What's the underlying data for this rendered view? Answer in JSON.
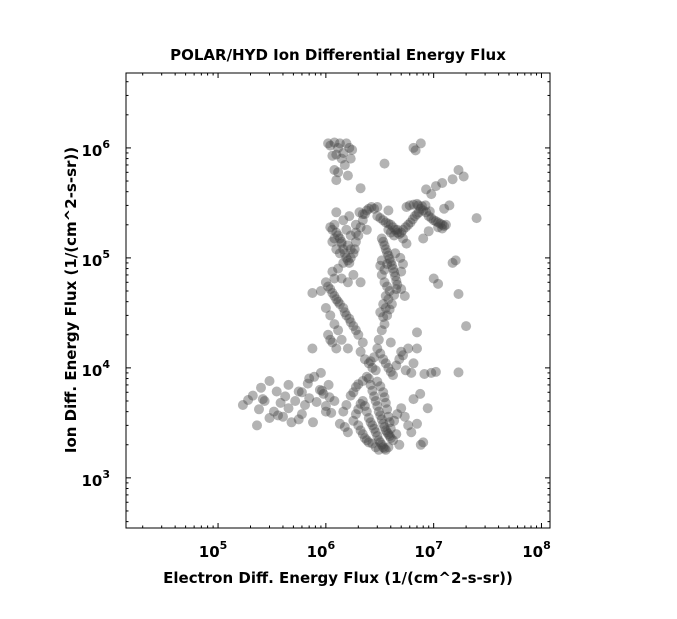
{
  "chart_data": {
    "type": "scatter",
    "title": "POLAR/HYD  Ion Differential Energy Flux",
    "xlabel": "Electron Diff. Energy Flux (1/(cm^2-s-sr))",
    "ylabel": "Ion Diff. Energy Flux (1/(cm^2-s-sr))",
    "x_scale": "log",
    "y_scale": "log",
    "xlim": [
      14000,
      120000000
    ],
    "ylim": [
      350,
      4800000
    ],
    "x_ticks": [
      {
        "base": "10",
        "exp": "5",
        "value": 100000
      },
      {
        "base": "10",
        "exp": "6",
        "value": 1000000
      },
      {
        "base": "10",
        "exp": "7",
        "value": 10000000
      },
      {
        "base": "10",
        "exp": "8",
        "value": 100000000
      }
    ],
    "y_ticks": [
      {
        "base": "10",
        "exp": "3",
        "value": 1000
      },
      {
        "base": "10",
        "exp": "4",
        "value": 10000
      },
      {
        "base": "10",
        "exp": "5",
        "value": 100000
      },
      {
        "base": "10",
        "exp": "6",
        "value": 1000000
      }
    ],
    "grid": false,
    "marker_color": "#404040",
    "marker_opacity": 0.4,
    "points": [
      [
        170000,
        4600
      ],
      [
        190000,
        5100
      ],
      [
        210000,
        5600
      ],
      [
        230000,
        3000
      ],
      [
        240000,
        4200
      ],
      [
        250000,
        6600
      ],
      [
        270000,
        5000
      ],
      [
        300000,
        3500
      ],
      [
        330000,
        4000
      ],
      [
        350000,
        6100
      ],
      [
        380000,
        4800
      ],
      [
        400000,
        3600
      ],
      [
        420000,
        5500
      ],
      [
        450000,
        4300
      ],
      [
        480000,
        3200
      ],
      [
        520000,
        5000
      ],
      [
        560000,
        6100
      ],
      [
        600000,
        3800
      ],
      [
        640000,
        4600
      ],
      [
        700000,
        5300
      ],
      [
        760000,
        3200
      ],
      [
        820000,
        4900
      ],
      [
        880000,
        6300
      ],
      [
        950000,
        5800
      ],
      [
        1000000,
        4500
      ],
      [
        1060000,
        7000
      ],
      [
        1120000,
        3900
      ],
      [
        1200000,
        5000
      ],
      [
        300000,
        7600
      ],
      [
        450000,
        7000
      ],
      [
        680000,
        7200
      ],
      [
        780000,
        8300
      ],
      [
        920000,
        6200
      ],
      [
        1000000,
        4000
      ],
      [
        1080000,
        5400
      ],
      [
        560000,
        3400
      ],
      [
        360000,
        3700
      ],
      [
        260000,
        5200
      ],
      [
        1050000,
        1100000
      ],
      [
        1100000,
        1050000
      ],
      [
        1200000,
        1120000
      ],
      [
        1300000,
        1000000
      ],
      [
        1350000,
        1100000
      ],
      [
        1450000,
        900000
      ],
      [
        1550000,
        1100000
      ],
      [
        1650000,
        1000000
      ],
      [
        1750000,
        960000
      ],
      [
        1150000,
        850000
      ],
      [
        1250000,
        870000
      ],
      [
        1400000,
        800000
      ],
      [
        1700000,
        800000
      ],
      [
        1500000,
        700000
      ],
      [
        1200000,
        630000
      ],
      [
        1300000,
        600000
      ],
      [
        1600000,
        560000
      ],
      [
        1250000,
        510000
      ],
      [
        2100000,
        430000
      ],
      [
        3500000,
        720000
      ],
      [
        6500000,
        1000000
      ],
      [
        6800000,
        950000
      ],
      [
        7600000,
        1100000
      ],
      [
        8500000,
        420000
      ],
      [
        9500000,
        380000
      ],
      [
        10500000,
        450000
      ],
      [
        12000000,
        480000
      ],
      [
        15000000,
        520000
      ],
      [
        17000000,
        630000
      ],
      [
        19000000,
        550000
      ],
      [
        25000000,
        230000
      ],
      [
        14000000,
        300000
      ],
      [
        12500000,
        280000
      ],
      [
        7000000,
        310000
      ],
      [
        1100000,
        190000
      ],
      [
        1150000,
        180000
      ],
      [
        1200000,
        200000
      ],
      [
        1250000,
        170000
      ],
      [
        1300000,
        160000
      ],
      [
        1350000,
        150000
      ],
      [
        1400000,
        135000
      ],
      [
        1450000,
        120000
      ],
      [
        1500000,
        110000
      ],
      [
        1550000,
        100000
      ],
      [
        1600000,
        95000
      ],
      [
        1650000,
        90000
      ],
      [
        1700000,
        100000
      ],
      [
        1800000,
        110000
      ],
      [
        1850000,
        120000
      ],
      [
        1900000,
        140000
      ],
      [
        2000000,
        160000
      ],
      [
        2100000,
        190000
      ],
      [
        2200000,
        220000
      ],
      [
        2300000,
        250000
      ],
      [
        2400000,
        270000
      ],
      [
        2500000,
        280000
      ],
      [
        2650000,
        290000
      ],
      [
        2800000,
        280000
      ],
      [
        3000000,
        290000
      ],
      [
        1150000,
        75000
      ],
      [
        1200000,
        65000
      ],
      [
        1300000,
        80000
      ],
      [
        1250000,
        120000
      ],
      [
        1150000,
        140000
      ],
      [
        1200000,
        150000
      ],
      [
        1400000,
        140000
      ],
      [
        1350000,
        110000
      ],
      [
        1450000,
        90000
      ],
      [
        1700000,
        160000
      ],
      [
        1900000,
        200000
      ],
      [
        1700000,
        120000
      ],
      [
        1600000,
        130000
      ],
      [
        2200000,
        250000
      ],
      [
        2050000,
        260000
      ],
      [
        3000000,
        240000
      ],
      [
        3200000,
        230000
      ],
      [
        3400000,
        220000
      ],
      [
        3600000,
        210000
      ],
      [
        3800000,
        205000
      ],
      [
        4000000,
        200000
      ],
      [
        4200000,
        190000
      ],
      [
        4400000,
        180000
      ],
      [
        4600000,
        170000
      ],
      [
        4800000,
        165000
      ],
      [
        5000000,
        170000
      ],
      [
        5200000,
        180000
      ],
      [
        5500000,
        190000
      ],
      [
        5800000,
        200000
      ],
      [
        6100000,
        210000
      ],
      [
        6400000,
        225000
      ],
      [
        6700000,
        240000
      ],
      [
        7000000,
        250000
      ],
      [
        7300000,
        260000
      ],
      [
        7600000,
        280000
      ],
      [
        8000000,
        270000
      ],
      [
        8500000,
        260000
      ],
      [
        9000000,
        240000
      ],
      [
        9500000,
        230000
      ],
      [
        10000000,
        220000
      ],
      [
        10500000,
        215000
      ],
      [
        11000000,
        210000
      ],
      [
        11500000,
        205000
      ],
      [
        12000000,
        200000
      ],
      [
        12500000,
        195000
      ],
      [
        13000000,
        200000
      ],
      [
        5600000,
        290000
      ],
      [
        6000000,
        300000
      ],
      [
        6500000,
        305000
      ],
      [
        7200000,
        300000
      ],
      [
        7800000,
        295000
      ],
      [
        8400000,
        300000
      ],
      [
        9200000,
        265000
      ],
      [
        11000000,
        190000
      ],
      [
        12000000,
        185000
      ],
      [
        3300000,
        150000
      ],
      [
        3400000,
        140000
      ],
      [
        3500000,
        130000
      ],
      [
        3600000,
        120000
      ],
      [
        3700000,
        112000
      ],
      [
        3800000,
        105000
      ],
      [
        3900000,
        98000
      ],
      [
        4000000,
        92000
      ],
      [
        4100000,
        86000
      ],
      [
        4200000,
        80000
      ],
      [
        4300000,
        74000
      ],
      [
        4400000,
        68000
      ],
      [
        4500000,
        62000
      ],
      [
        4600000,
        57000
      ],
      [
        3500000,
        60000
      ],
      [
        3700000,
        55000
      ],
      [
        3900000,
        50000
      ],
      [
        3600000,
        45000
      ],
      [
        3800000,
        42000
      ],
      [
        3400000,
        38000
      ],
      [
        3600000,
        35000
      ],
      [
        3200000,
        32000
      ],
      [
        3400000,
        29000
      ],
      [
        3700000,
        30000
      ],
      [
        3900000,
        34000
      ],
      [
        4100000,
        38000
      ],
      [
        4300000,
        46000
      ],
      [
        4500000,
        52000
      ],
      [
        3300000,
        70000
      ],
      [
        3500000,
        78000
      ],
      [
        3200000,
        85000
      ],
      [
        3300000,
        95000
      ],
      [
        3700000,
        88000
      ],
      [
        4600000,
        180000
      ],
      [
        4000000,
        170000
      ],
      [
        3800000,
        180000
      ],
      [
        4400000,
        110000
      ],
      [
        4900000,
        100000
      ],
      [
        5200000,
        88000
      ],
      [
        5000000,
        75000
      ],
      [
        1000000,
        60000
      ],
      [
        1050000,
        55000
      ],
      [
        1100000,
        52000
      ],
      [
        1150000,
        48000
      ],
      [
        1200000,
        45000
      ],
      [
        1250000,
        42000
      ],
      [
        1300000,
        40000
      ],
      [
        1350000,
        38000
      ],
      [
        1450000,
        35000
      ],
      [
        1500000,
        32000
      ],
      [
        1550000,
        30000
      ],
      [
        1650000,
        28000
      ],
      [
        1700000,
        26000
      ],
      [
        1800000,
        24000
      ],
      [
        1900000,
        22000
      ],
      [
        2000000,
        20000
      ],
      [
        1000000,
        35000
      ],
      [
        1100000,
        30000
      ],
      [
        1200000,
        25000
      ],
      [
        1300000,
        22000
      ],
      [
        1050000,
        20000
      ],
      [
        1150000,
        17000
      ],
      [
        1250000,
        15000
      ],
      [
        1400000,
        18000
      ],
      [
        1600000,
        15000
      ],
      [
        2100000,
        14000
      ],
      [
        2300000,
        12000
      ],
      [
        2500000,
        11000
      ],
      [
        2700000,
        10000
      ],
      [
        2900000,
        9500
      ],
      [
        750000,
        48000
      ],
      [
        900000,
        50000
      ],
      [
        1600000,
        60000
      ],
      [
        1800000,
        70000
      ],
      [
        1400000,
        65000
      ],
      [
        1100000,
        18000
      ],
      [
        2200000,
        17000
      ],
      [
        5200000,
        13000
      ],
      [
        5800000,
        15000
      ],
      [
        7000000,
        21000
      ],
      [
        2500000,
        8000
      ],
      [
        2600000,
        7000
      ],
      [
        2700000,
        6200
      ],
      [
        2800000,
        5500
      ],
      [
        2900000,
        5000
      ],
      [
        3000000,
        4500
      ],
      [
        3100000,
        4000
      ],
      [
        3200000,
        3700
      ],
      [
        3300000,
        3400
      ],
      [
        3400000,
        3100
      ],
      [
        3500000,
        2900
      ],
      [
        3600000,
        2700
      ],
      [
        3700000,
        2600
      ],
      [
        3800000,
        2500
      ],
      [
        3900000,
        2400
      ],
      [
        4000000,
        2300
      ],
      [
        2200000,
        5000
      ],
      [
        2300000,
        4500
      ],
      [
        2400000,
        4000
      ],
      [
        2500000,
        3500
      ],
      [
        2600000,
        3200
      ],
      [
        2700000,
        3000
      ],
      [
        2800000,
        2800
      ],
      [
        2900000,
        2600
      ],
      [
        3000000,
        2400
      ],
      [
        3100000,
        2200
      ],
      [
        3200000,
        2100
      ],
      [
        3300000,
        2000
      ],
      [
        3400000,
        1900
      ],
      [
        3500000,
        1850
      ],
      [
        3600000,
        1800
      ],
      [
        3800000,
        1900
      ],
      [
        2000000,
        3000
      ],
      [
        2100000,
        2700
      ],
      [
        2200000,
        2500
      ],
      [
        2300000,
        2300
      ],
      [
        2400000,
        2200
      ],
      [
        2500000,
        2100
      ],
      [
        2700000,
        2050
      ],
      [
        2900000,
        1900
      ],
      [
        3100000,
        1800
      ],
      [
        4200000,
        2200
      ],
      [
        4500000,
        2500
      ],
      [
        1800000,
        3300
      ],
      [
        1900000,
        3800
      ],
      [
        2000000,
        4200
      ],
      [
        2100000,
        4700
      ],
      [
        1700000,
        5600
      ],
      [
        1800000,
        6000
      ],
      [
        1900000,
        6700
      ],
      [
        2000000,
        7100
      ],
      [
        2200000,
        7600
      ],
      [
        2400000,
        8300
      ],
      [
        3000000,
        7500
      ],
      [
        3200000,
        6800
      ],
      [
        3400000,
        6000
      ],
      [
        3500000,
        5400
      ],
      [
        3600000,
        4800
      ],
      [
        3700000,
        4200
      ],
      [
        3800000,
        3600
      ],
      [
        3900000,
        3200
      ],
      [
        4000000,
        2800
      ],
      [
        4300000,
        3300
      ],
      [
        4600000,
        3800
      ],
      [
        5000000,
        4300
      ],
      [
        5400000,
        3600
      ],
      [
        5800000,
        3000
      ],
      [
        6200000,
        2600
      ],
      [
        7000000,
        3100
      ],
      [
        8000000,
        2100
      ],
      [
        7600000,
        2000
      ],
      [
        4800000,
        2000
      ],
      [
        1500000,
        2900
      ],
      [
        1600000,
        2600
      ],
      [
        1350000,
        3100
      ],
      [
        1450000,
        4000
      ],
      [
        1550000,
        4600
      ],
      [
        6500000,
        5200
      ],
      [
        7500000,
        5800
      ],
      [
        8800000,
        4300
      ],
      [
        3000000,
        15000
      ],
      [
        3200000,
        13500
      ],
      [
        3400000,
        12000
      ],
      [
        3600000,
        11000
      ],
      [
        3800000,
        10000
      ],
      [
        4000000,
        9200
      ],
      [
        4200000,
        8600
      ],
      [
        3100000,
        18000
      ],
      [
        3300000,
        22000
      ],
      [
        3500000,
        25000
      ],
      [
        2800000,
        12500
      ],
      [
        2600000,
        11500
      ],
      [
        4500000,
        10500
      ],
      [
        4800000,
        12000
      ],
      [
        5500000,
        9500
      ],
      [
        6200000,
        9000
      ],
      [
        8200000,
        8800
      ],
      [
        9500000,
        9000
      ],
      [
        10500000,
        9200
      ],
      [
        17000000,
        9100
      ],
      [
        7000000,
        15000
      ],
      [
        6500000,
        11000
      ],
      [
        5000000,
        14000
      ],
      [
        4000000,
        17000
      ],
      [
        1250000,
        260000
      ],
      [
        1450000,
        220000
      ],
      [
        1550000,
        180000
      ],
      [
        1650000,
        240000
      ],
      [
        1900000,
        170000
      ],
      [
        2400000,
        180000
      ],
      [
        3800000,
        270000
      ],
      [
        4300000,
        160000
      ],
      [
        5200000,
        150000
      ],
      [
        5600000,
        135000
      ],
      [
        5000000,
        52000
      ],
      [
        5400000,
        45000
      ],
      [
        8000000,
        150000
      ],
      [
        9000000,
        175000
      ],
      [
        10000000,
        65000
      ],
      [
        11000000,
        58000
      ],
      [
        16000000,
        95000
      ],
      [
        15000000,
        90000
      ],
      [
        17000000,
        47000
      ],
      [
        20000000,
        24000
      ],
      [
        2100000,
        60000
      ],
      [
        750000,
        15000
      ],
      [
        900000,
        9000
      ],
      [
        600000,
        6000
      ],
      [
        700000,
        8000
      ]
    ]
  }
}
